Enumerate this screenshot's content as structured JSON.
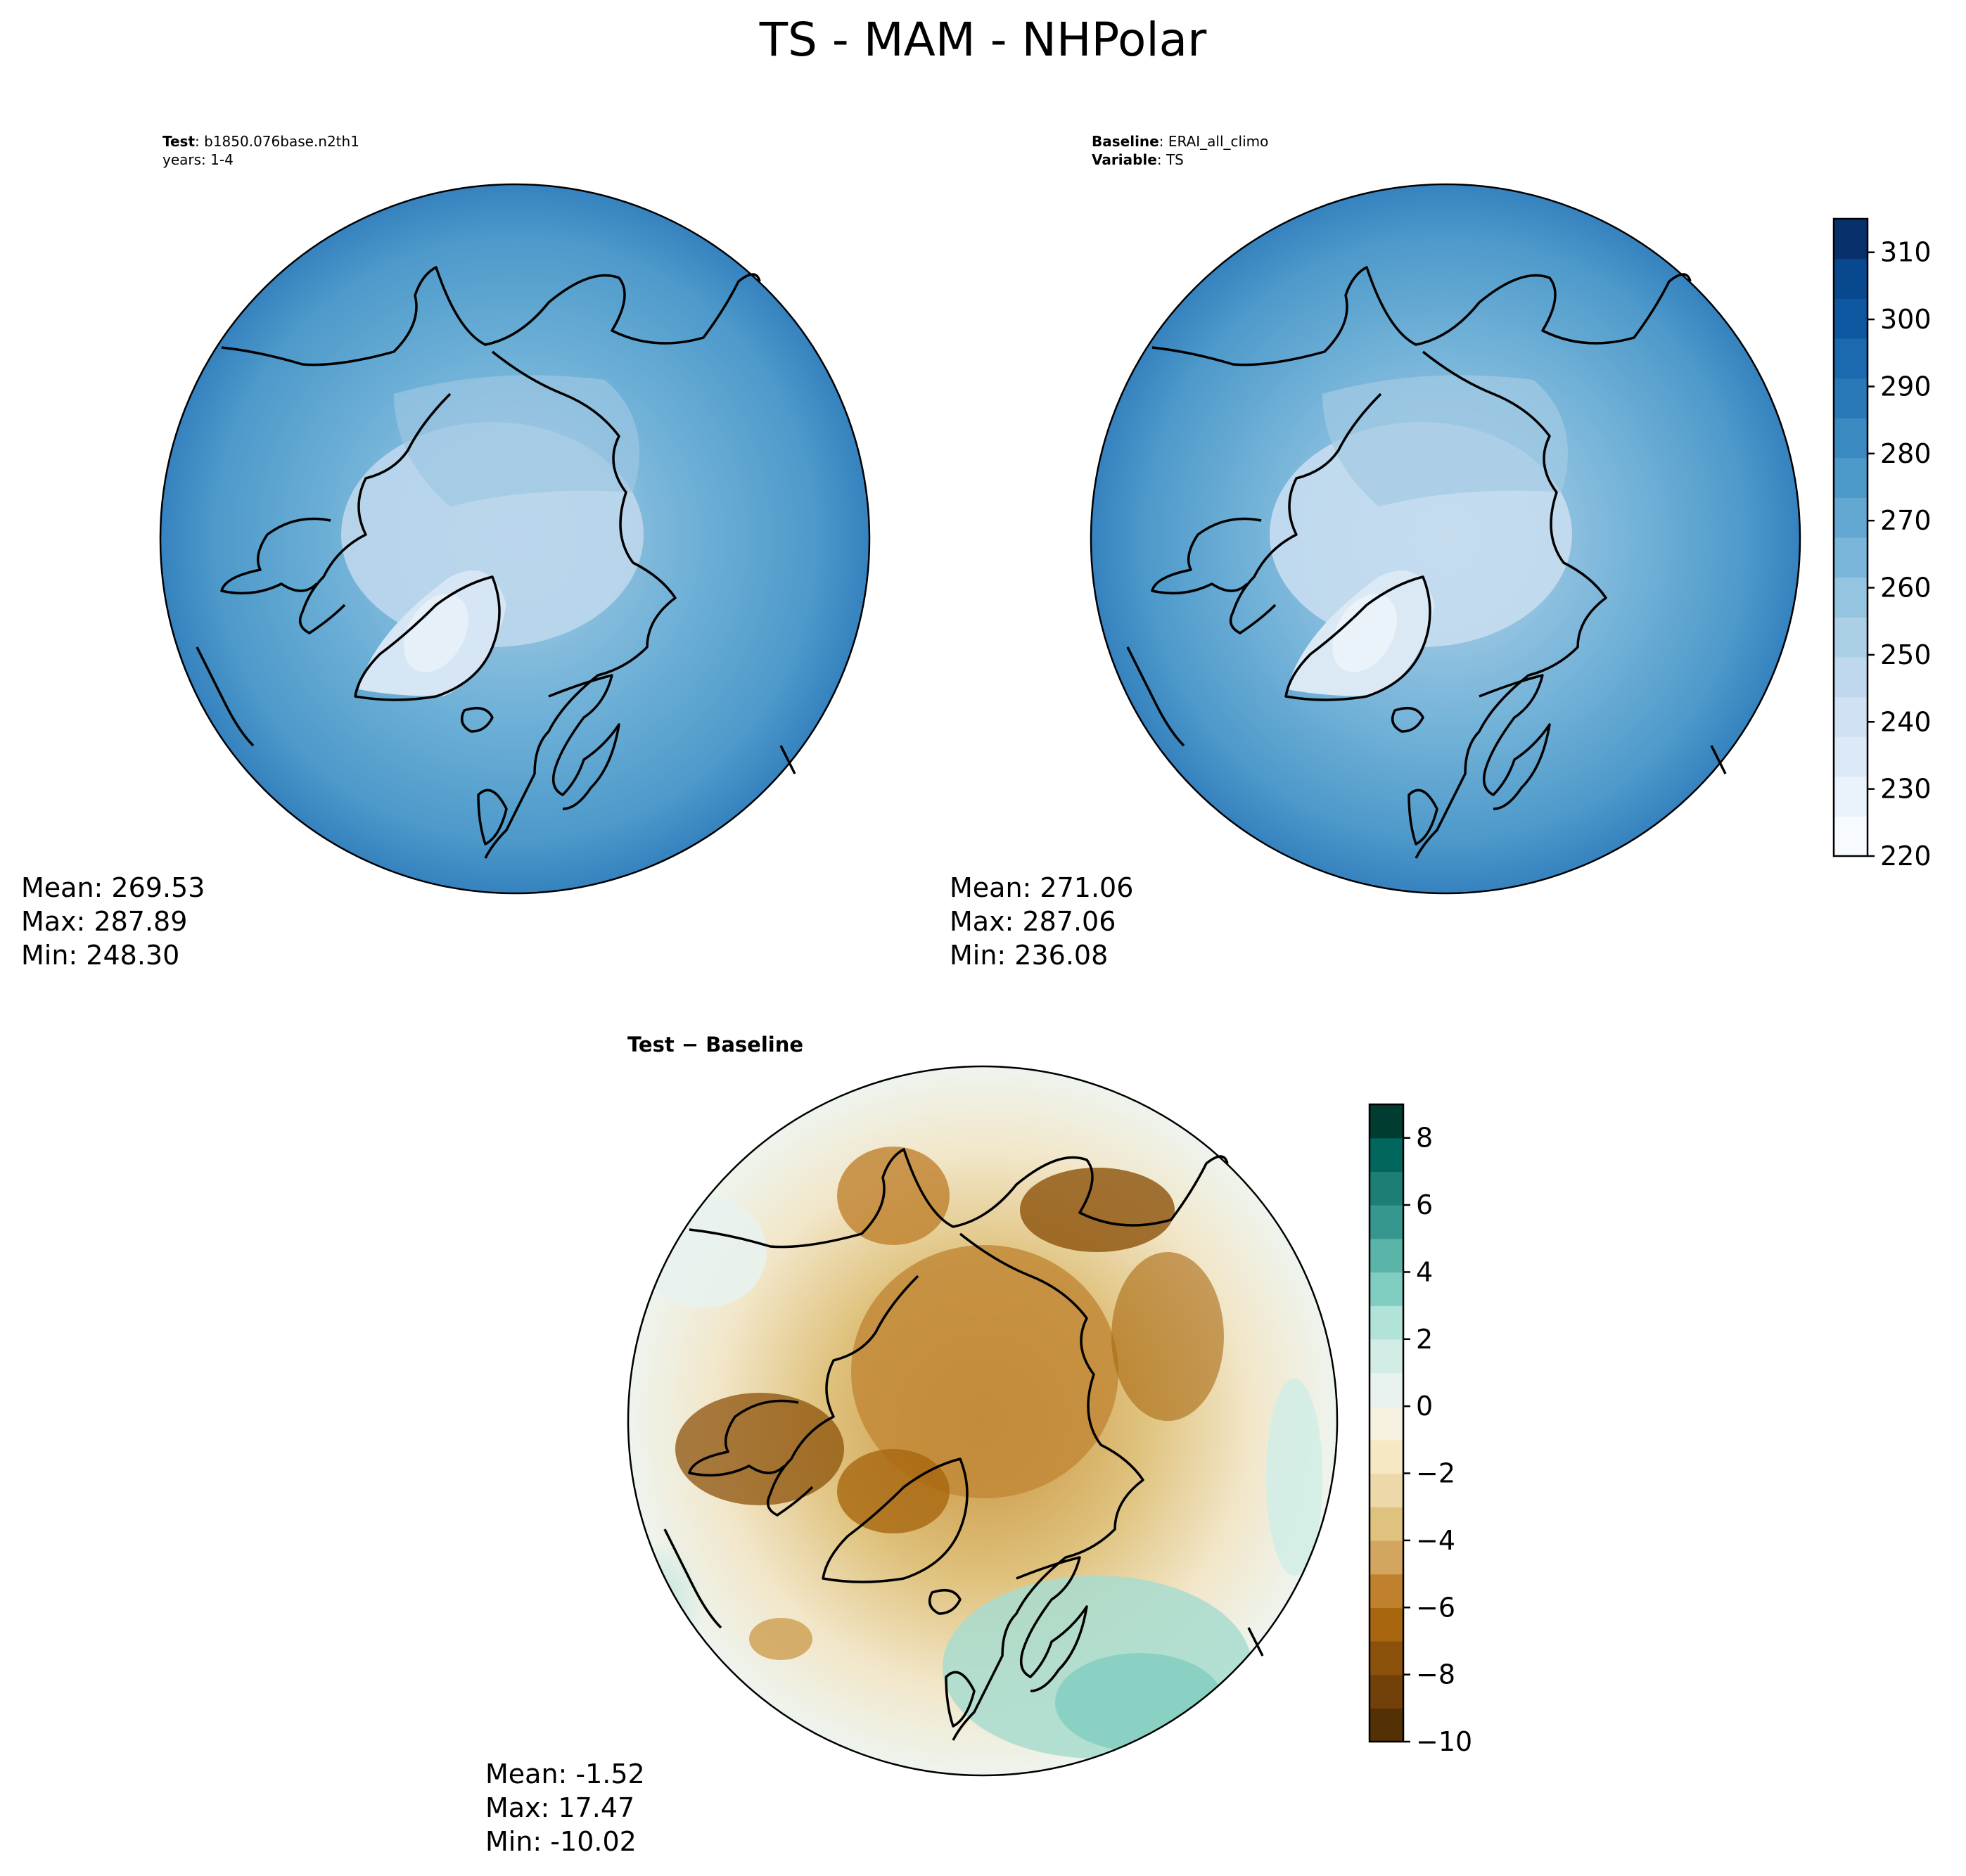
{
  "title": "TS - MAM - NHPolar",
  "test_panel": {
    "label_key": "Test",
    "case": "b1850.076base.n2th1",
    "years": "years: 1-4",
    "stats": {
      "mean": "Mean: 269.53",
      "max": "Max: 287.89",
      "min": "Min: 248.30"
    }
  },
  "baseline_panel": {
    "label_key": "Baseline",
    "case": "ERAI_all_climo",
    "variable_key": "Variable",
    "variable": "TS",
    "stats": {
      "mean": "Mean: 271.06",
      "max": "Max: 287.06",
      "min": "Min: 236.08"
    }
  },
  "diff_panel": {
    "title": "Test − Baseline",
    "stats": {
      "mean": "Mean: -1.52",
      "max": "Max: 17.47",
      "min": "Min: -10.02"
    }
  },
  "colors": {
    "ocean_mid": "#4a93c6",
    "coast": "#000000"
  },
  "chart_data": [
    {
      "type": "colorbar",
      "name": "absolute",
      "range": [
        220,
        315
      ],
      "ticks": [
        220,
        230,
        240,
        250,
        260,
        270,
        280,
        290,
        300,
        310
      ],
      "tick_labels": [
        "220",
        "230",
        "240",
        "250",
        "260",
        "270",
        "280",
        "290",
        "300",
        "310"
      ],
      "colors": [
        "#f7fbff",
        "#eaf3fb",
        "#dce9f6",
        "#cfe1f2",
        "#bfd8ed",
        "#abcfe5",
        "#94c4df",
        "#7ab6d9",
        "#62a8d3",
        "#4d99ca",
        "#3a89c1",
        "#2979b9",
        "#1b69af",
        "#0d58a1",
        "#08488e",
        "#08306b"
      ]
    },
    {
      "type": "colorbar",
      "name": "difference",
      "range": [
        -10,
        9
      ],
      "ticks": [
        -10,
        -8,
        -6,
        -4,
        -2,
        0,
        2,
        4,
        6,
        8
      ],
      "tick_labels": [
        "−10",
        "−8",
        "−6",
        "−4",
        "−2",
        "0",
        "2",
        "4",
        "6",
        "8"
      ],
      "colors": [
        "#543005",
        "#714109",
        "#8c510a",
        "#a8670f",
        "#bf812d",
        "#d2a65e",
        "#dfc27d",
        "#ecd8a9",
        "#f6e8c3",
        "#f5f0e0",
        "#e8f2ee",
        "#d2ede6",
        "#b2e3d8",
        "#80cdc1",
        "#5ab4a7",
        "#35978f",
        "#1d7e75",
        "#01665e",
        "#003c30"
      ]
    }
  ]
}
